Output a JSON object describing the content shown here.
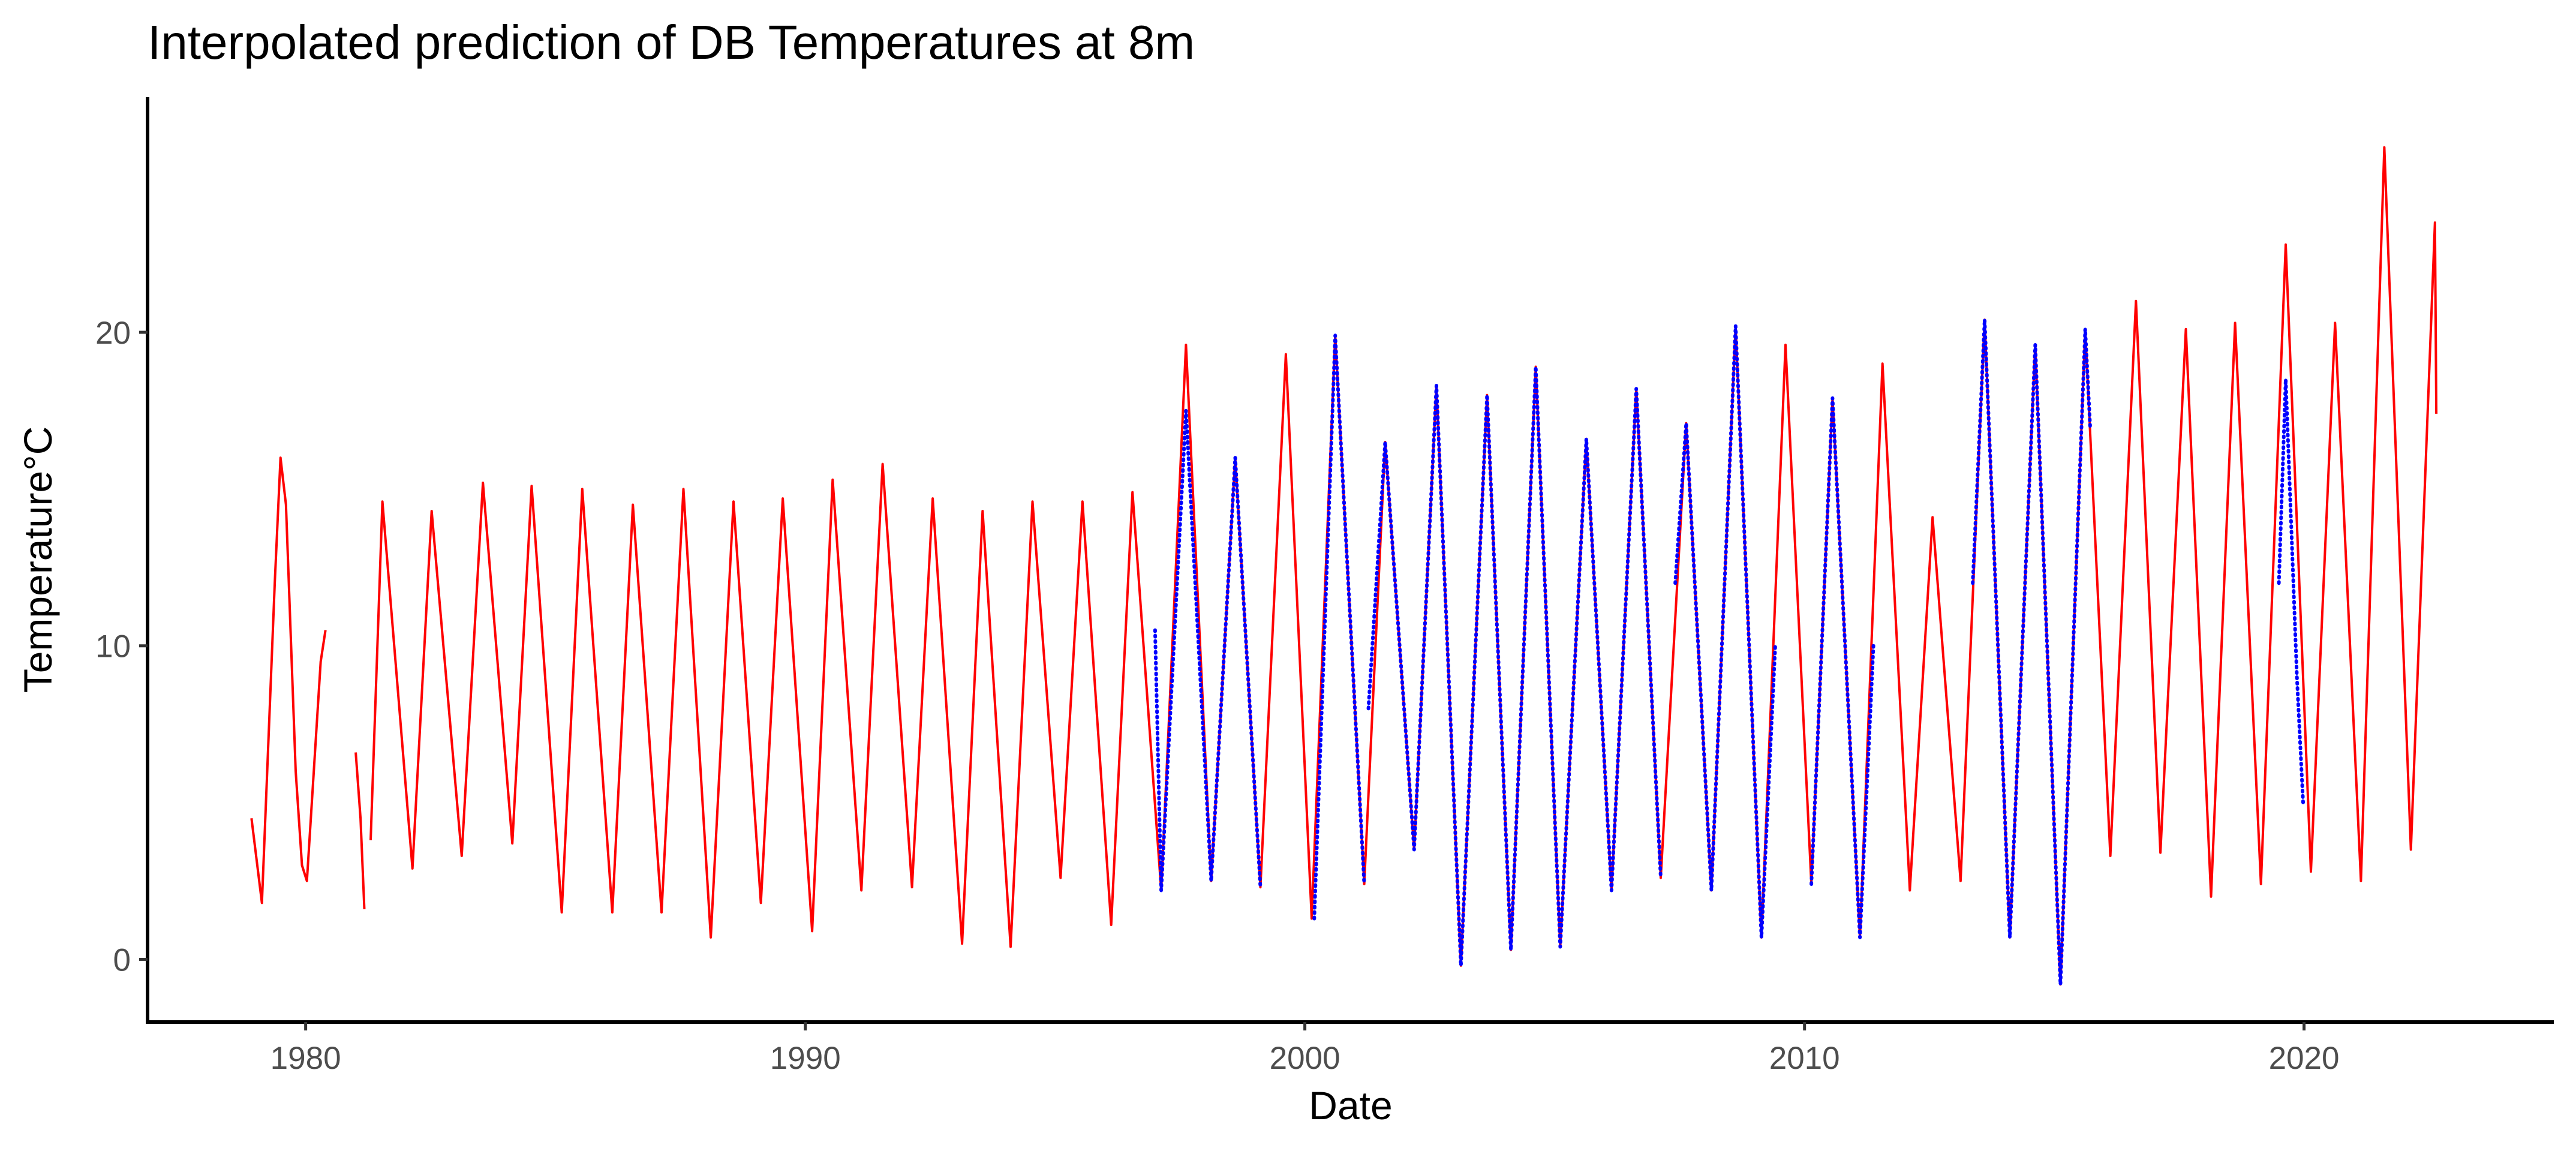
{
  "chart_data": {
    "type": "line",
    "title": "Interpolated prediction of DB Temperatures at 8m",
    "xlabel": "Date",
    "ylabel": "Temperature°C",
    "xlim": [
      "1976-11-01",
      "2024-12-31"
    ],
    "ylim": [
      -2,
      27.5
    ],
    "x_ticks": [
      {
        "value": "1980-01-01",
        "label": "1980"
      },
      {
        "value": "1990-01-01",
        "label": "1990"
      },
      {
        "value": "2000-01-01",
        "label": "2000"
      },
      {
        "value": "2010-01-01",
        "label": "2010"
      },
      {
        "value": "2020-01-01",
        "label": "2020"
      }
    ],
    "y_ticks": [
      {
        "value": 0,
        "label": "0"
      },
      {
        "value": 10,
        "label": "10"
      },
      {
        "value": 20,
        "label": "20"
      }
    ],
    "grid": false,
    "legend": "none",
    "series": [
      {
        "color": "#ff0000",
        "style": "line",
        "segments": [
          [
            [
              "1978-12-01",
              4.5
            ],
            [
              "1979-02-15",
              1.8
            ],
            [
              "1979-05-20",
              12.0
            ],
            [
              "1979-07-01",
              16.0
            ],
            [
              "1979-08-10",
              14.5
            ],
            [
              "1979-10-20",
              6.0
            ],
            [
              "1979-12-05",
              3.0
            ],
            [
              "1980-01-10",
              2.5
            ],
            [
              "1980-04-20",
              9.5
            ],
            [
              "1980-05-25",
              10.5
            ]
          ],
          [
            [
              "1981-01-01",
              6.6
            ],
            [
              "1981-02-05",
              4.5
            ],
            [
              "1981-03-05",
              1.6
            ]
          ],
          [
            [
              "1981-04-20",
              3.8
            ],
            [
              "1981-07-15",
              14.6
            ],
            [
              "1982-02-20",
              2.9
            ],
            [
              "1982-07-10",
              14.3
            ],
            [
              "1983-02-15",
              3.3
            ],
            [
              "1983-07-20",
              15.2
            ],
            [
              "1984-02-20",
              3.7
            ],
            [
              "1984-07-10",
              15.1
            ],
            [
              "1985-02-15",
              1.5
            ],
            [
              "1985-07-15",
              15.0
            ],
            [
              "1986-02-20",
              1.5
            ],
            [
              "1986-07-20",
              14.5
            ],
            [
              "1987-02-15",
              1.5
            ],
            [
              "1987-07-25",
              15.0
            ],
            [
              "1988-02-10",
              0.7
            ],
            [
              "1988-07-25",
              14.6
            ],
            [
              "1989-02-10",
              1.8
            ],
            [
              "1989-07-20",
              14.7
            ],
            [
              "1990-02-20",
              0.9
            ],
            [
              "1990-07-20",
              15.3
            ],
            [
              "1991-02-15",
              2.2
            ],
            [
              "1991-07-20",
              15.8
            ],
            [
              "1992-02-20",
              2.3
            ],
            [
              "1992-07-20",
              14.7
            ],
            [
              "1993-02-20",
              0.5
            ],
            [
              "1993-07-20",
              14.3
            ],
            [
              "1994-02-10",
              0.4
            ],
            [
              "1994-07-20",
              14.6
            ],
            [
              "1995-02-10",
              2.6
            ],
            [
              "1995-07-20",
              14.6
            ],
            [
              "1996-02-15",
              1.1
            ],
            [
              "1996-07-20",
              14.9
            ],
            [
              "1997-02-15",
              2.2
            ],
            [
              "1997-08-15",
              19.6
            ],
            [
              "1998-02-15",
              2.5
            ],
            [
              "1998-08-10",
              16.0
            ],
            [
              "1999-02-10",
              2.3
            ],
            [
              "1999-08-15",
              19.3
            ],
            [
              "2000-02-20",
              1.3
            ],
            [
              "2000-08-10",
              19.9
            ],
            [
              "2001-03-10",
              2.4
            ],
            [
              "2001-08-10",
              16.5
            ],
            [
              "2002-03-10",
              3.5
            ],
            [
              "2002-08-20",
              18.3
            ],
            [
              "2003-02-15",
              -0.2
            ],
            [
              "2003-08-25",
              18.0
            ],
            [
              "2004-02-15",
              0.3
            ],
            [
              "2004-08-15",
              18.9
            ],
            [
              "2005-02-10",
              0.4
            ],
            [
              "2005-08-20",
              16.6
            ],
            [
              "2006-02-20",
              2.2
            ],
            [
              "2006-08-20",
              18.2
            ],
            [
              "2007-02-15",
              2.6
            ],
            [
              "2007-08-20",
              17.1
            ],
            [
              "2008-02-20",
              2.2
            ],
            [
              "2008-08-15",
              20.2
            ],
            [
              "2009-02-20",
              0.7
            ],
            [
              "2009-08-15",
              19.6
            ],
            [
              "2010-02-20",
              2.4
            ],
            [
              "2010-07-25",
              17.9
            ],
            [
              "2011-02-10",
              0.7
            ],
            [
              "2011-07-25",
              19.0
            ],
            [
              "2012-02-10",
              2.2
            ],
            [
              "2012-07-25",
              14.1
            ],
            [
              "2013-02-15",
              2.5
            ],
            [
              "2013-08-10",
              20.4
            ],
            [
              "2014-02-10",
              0.7
            ],
            [
              "2014-08-15",
              19.6
            ],
            [
              "2015-02-15",
              -0.8
            ],
            [
              "2015-08-15",
              20.1
            ],
            [
              "2016-02-15",
              3.3
            ],
            [
              "2016-08-20",
              21.0
            ],
            [
              "2017-02-15",
              3.4
            ],
            [
              "2017-08-20",
              20.1
            ],
            [
              "2018-02-20",
              2.0
            ],
            [
              "2018-08-15",
              20.3
            ],
            [
              "2019-02-20",
              2.4
            ],
            [
              "2019-08-20",
              22.8
            ],
            [
              "2020-02-20",
              2.8
            ],
            [
              "2020-08-15",
              20.3
            ],
            [
              "2021-02-20",
              2.5
            ],
            [
              "2021-08-10",
              25.9
            ],
            [
              "2022-02-20",
              3.5
            ],
            [
              "2022-08-15",
              23.5
            ],
            [
              "2022-08-25",
              17.4
            ]
          ]
        ]
      },
      {
        "color": "#0000ff",
        "style": "dotted",
        "segments": [
          [
            [
              "1997-01-01",
              10.5
            ],
            [
              "1997-02-15",
              2.2
            ],
            [
              "1997-08-15",
              17.5
            ],
            [
              "1998-02-15",
              2.5
            ],
            [
              "1998-08-10",
              16.0
            ],
            [
              "1999-02-10",
              2.3
            ]
          ],
          [
            [
              "2000-03-10",
              1.3
            ],
            [
              "2000-08-10",
              19.9
            ],
            [
              "2001-03-10",
              2.4
            ]
          ],
          [
            [
              "2001-04-10",
              8.0
            ],
            [
              "2001-08-10",
              16.5
            ],
            [
              "2002-03-10",
              3.5
            ],
            [
              "2002-08-20",
              18.3
            ],
            [
              "2003-02-15",
              -0.2
            ],
            [
              "2003-08-25",
              18.0
            ],
            [
              "2004-02-15",
              0.3
            ],
            [
              "2004-08-15",
              18.9
            ],
            [
              "2005-02-10",
              0.4
            ],
            [
              "2005-08-20",
              16.6
            ],
            [
              "2006-02-20",
              2.2
            ],
            [
              "2006-08-20",
              18.2
            ],
            [
              "2007-02-15",
              2.6
            ]
          ],
          [
            [
              "2007-06-01",
              12.0
            ],
            [
              "2007-08-20",
              17.1
            ],
            [
              "2008-02-20",
              2.2
            ],
            [
              "2008-08-15",
              20.2
            ],
            [
              "2009-02-20",
              0.7
            ],
            [
              "2009-06-01",
              10.0
            ]
          ],
          [
            [
              "2010-02-20",
              2.4
            ],
            [
              "2010-07-25",
              17.9
            ],
            [
              "2011-02-10",
              0.7
            ],
            [
              "2011-05-20",
              10.0
            ]
          ],
          [
            [
              "2013-05-15",
              12.0
            ],
            [
              "2013-08-10",
              20.4
            ],
            [
              "2014-02-10",
              0.7
            ],
            [
              "2014-08-15",
              19.6
            ],
            [
              "2015-02-15",
              -0.8
            ],
            [
              "2015-08-15",
              20.1
            ],
            [
              "2015-09-20",
              17.0
            ]
          ],
          [
            [
              "2019-07-01",
              12.0
            ],
            [
              "2019-08-20",
              18.5
            ],
            [
              "2019-11-10",
              9.0
            ],
            [
              "2019-12-25",
              5.0
            ]
          ]
        ]
      }
    ]
  }
}
